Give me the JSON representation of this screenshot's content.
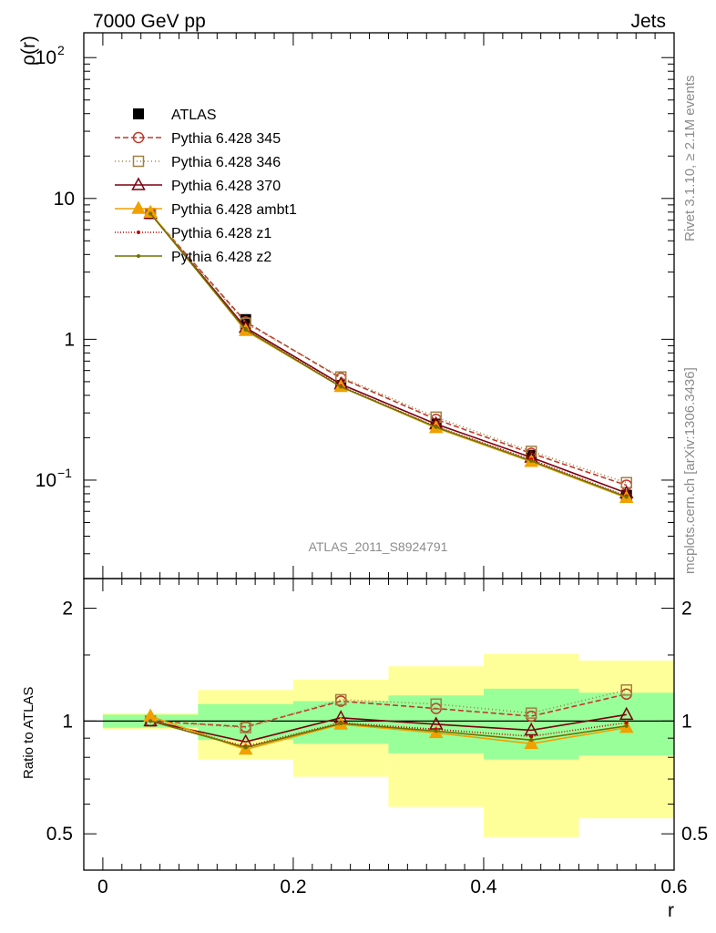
{
  "header": {
    "left": "7000 GeV pp",
    "right": "Jets"
  },
  "side_text": {
    "upper": "Rivet 3.1.10, ≥ 2.1M events",
    "lower": "mcplots.cern.ch [arXiv:1306.3436]"
  },
  "watermark": "ATLAS_2011_S8924791",
  "chart_data": [
    {
      "type": "line",
      "panel": "main",
      "ylabel": "ρ(r)",
      "yscale": "log",
      "ylim": [
        0.02,
        150
      ],
      "xlim": [
        -0.02,
        0.6
      ],
      "yticks": [
        {
          "value": 0.1,
          "base": "10",
          "exp": "−1"
        },
        {
          "value": 1,
          "label": "1"
        },
        {
          "value": 10,
          "label": "10"
        },
        {
          "value": 100,
          "base": "10",
          "exp": "2"
        }
      ],
      "x": [
        0.05,
        0.15,
        0.25,
        0.35,
        0.45,
        0.55
      ],
      "legend_position": "top-left",
      "series": [
        {
          "name": "ATLAS",
          "color": "#000000",
          "marker": "square-filled",
          "dash": "",
          "values": [
            7.8,
            1.38,
            0.47,
            0.25,
            0.15,
            0.078
          ]
        },
        {
          "name": "Pythia 6.428 345",
          "color": "#c0392b",
          "marker": "circle-open",
          "dash": "6,3",
          "values": [
            7.8,
            1.33,
            0.53,
            0.27,
            0.155,
            0.092
          ]
        },
        {
          "name": "Pythia 6.428 346",
          "color": "#a08040",
          "marker": "square-open",
          "dash": "1,3",
          "values": [
            7.8,
            1.3,
            0.54,
            0.28,
            0.16,
            0.096
          ]
        },
        {
          "name": "Pythia 6.428 370",
          "color": "#7a0010",
          "marker": "triangle-open",
          "dash": "",
          "values": [
            7.8,
            1.21,
            0.48,
            0.25,
            0.145,
            0.081
          ]
        },
        {
          "name": "Pythia 6.428 ambt1",
          "color": "#f0a000",
          "marker": "triangle-filled",
          "dash": "",
          "values": [
            7.95,
            1.15,
            0.46,
            0.235,
            0.135,
            0.075
          ]
        },
        {
          "name": "Pythia 6.428 z1",
          "color": "#c00000",
          "marker": "dot",
          "dash": "1,2",
          "values": [
            7.8,
            1.18,
            0.465,
            0.24,
            0.14,
            0.077
          ]
        },
        {
          "name": "Pythia 6.428 z2",
          "color": "#707000",
          "marker": "dot",
          "dash": "",
          "values": [
            7.8,
            1.17,
            0.46,
            0.238,
            0.137,
            0.076
          ]
        }
      ]
    },
    {
      "type": "line",
      "panel": "ratio",
      "ylabel": "Ratio to ATLAS",
      "xlabel": "r",
      "yscale": "log",
      "ylim": [
        0.4,
        2.4
      ],
      "xlim": [
        -0.02,
        0.6
      ],
      "yticks": [
        0.5,
        1,
        2
      ],
      "ytick_labels": [
        "0.5",
        "1",
        "2"
      ],
      "xticks": [
        0,
        0.2,
        0.4,
        0.6
      ],
      "xtick_labels": [
        "0",
        "0.2",
        "0.4",
        "0.6"
      ],
      "x": [
        0.05,
        0.15,
        0.25,
        0.35,
        0.45,
        0.55
      ],
      "bands": {
        "x_edges": [
          0.0,
          0.1,
          0.2,
          0.3,
          0.4,
          0.5,
          0.6
        ],
        "outer": {
          "color": "#ffff99",
          "lo": [
            0.95,
            0.79,
            0.71,
            0.59,
            0.49,
            0.55
          ],
          "hi": [
            1.05,
            1.21,
            1.29,
            1.4,
            1.51,
            1.45
          ]
        },
        "inner": {
          "color": "#99ff99",
          "lo": [
            0.96,
            0.89,
            0.87,
            0.82,
            0.79,
            0.81
          ],
          "hi": [
            1.04,
            1.11,
            1.13,
            1.17,
            1.22,
            1.19
          ]
        }
      },
      "series": [
        {
          "name": "Pythia 6.428 345",
          "color": "#c0392b",
          "marker": "circle-open",
          "dash": "6,3",
          "values": [
            1.0,
            0.965,
            1.13,
            1.08,
            1.03,
            1.18
          ]
        },
        {
          "name": "Pythia 6.428 346",
          "color": "#a08040",
          "marker": "square-open",
          "dash": "1,3",
          "values": [
            1.0,
            0.96,
            1.14,
            1.11,
            1.05,
            1.21
          ]
        },
        {
          "name": "Pythia 6.428 370",
          "color": "#7a0010",
          "marker": "triangle-open",
          "dash": "",
          "values": [
            1.0,
            0.88,
            1.02,
            0.98,
            0.945,
            1.04
          ]
        },
        {
          "name": "Pythia 6.428 ambt1",
          "color": "#f0a000",
          "marker": "triangle-filled",
          "dash": "",
          "values": [
            1.03,
            0.84,
            0.98,
            0.93,
            0.87,
            0.96
          ]
        },
        {
          "name": "Pythia 6.428 z1",
          "color": "#c00000",
          "marker": "dot",
          "dash": "1,2",
          "values": [
            1.0,
            0.855,
            0.99,
            0.95,
            0.91,
            0.99
          ]
        },
        {
          "name": "Pythia 6.428 z2",
          "color": "#707000",
          "marker": "dot",
          "dash": "",
          "values": [
            1.0,
            0.85,
            0.985,
            0.94,
            0.89,
            0.97
          ]
        }
      ]
    }
  ]
}
